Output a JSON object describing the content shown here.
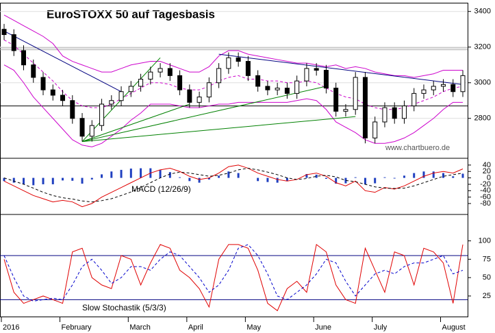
{
  "chart_data": [
    {
      "type": "candlestick",
      "title": "EuroSTOXX 50 auf Tagesbasis",
      "watermark": "www.chartbuero.de",
      "open": [
        3300,
        3270,
        3180,
        3100,
        3030,
        2960,
        2930,
        2900,
        2800,
        2700,
        2760,
        2880,
        2900,
        2950,
        2980,
        3020,
        3060,
        3080,
        3040,
        2960,
        2890,
        2920,
        3000,
        3080,
        3140,
        3120,
        3040,
        2980,
        2960,
        2970,
        2940,
        3010,
        3080,
        3070,
        2970,
        2840,
        2850,
        3030,
        2690,
        2780,
        2860,
        2800,
        2870,
        2940,
        2960,
        2980,
        2990,
        2950
      ],
      "high": [
        3330,
        3300,
        3210,
        3130,
        3060,
        2990,
        2960,
        2930,
        2830,
        2790,
        2910,
        2930,
        2980,
        3010,
        3050,
        3090,
        3110,
        3110,
        3070,
        2990,
        2950,
        3030,
        3110,
        3170,
        3170,
        3150,
        3070,
        3010,
        3000,
        3000,
        3040,
        3110,
        3110,
        3100,
        3000,
        2880,
        3060,
        3060,
        2810,
        2890,
        2890,
        2900,
        2970,
        2990,
        3010,
        3020,
        3020,
        3070
      ],
      "low": [
        3240,
        3150,
        3070,
        3000,
        2930,
        2900,
        2870,
        2770,
        2670,
        2670,
        2730,
        2850,
        2870,
        2920,
        2950,
        2990,
        3030,
        3010,
        2930,
        2860,
        2860,
        2890,
        2970,
        3050,
        3090,
        3010,
        2950,
        2930,
        2930,
        2910,
        2910,
        2980,
        3040,
        2940,
        2810,
        2810,
        2820,
        2660,
        2660,
        2750,
        2770,
        2770,
        2840,
        2910,
        2930,
        2950,
        2920,
        2920
      ],
      "close": [
        3270,
        3180,
        3100,
        3030,
        2960,
        2930,
        2900,
        2800,
        2700,
        2760,
        2880,
        2900,
        2950,
        2980,
        3020,
        3060,
        3080,
        3040,
        2960,
        2890,
        2920,
        3000,
        3080,
        3140,
        3120,
        3040,
        2980,
        2960,
        2970,
        2940,
        3010,
        3080,
        3070,
        2970,
        2840,
        2850,
        3030,
        2690,
        2780,
        2860,
        2800,
        2870,
        2940,
        2960,
        2980,
        2990,
        2950,
        3040
      ],
      "bands": {
        "color": "#cc00cc",
        "upper": [
          3380,
          3350,
          3320,
          3290,
          3260,
          3220,
          3150,
          3120,
          3100,
          3080,
          3060,
          3060,
          3080,
          3100,
          3110,
          3120,
          3120,
          3100,
          3080,
          3060,
          3060,
          3090,
          3150,
          3180,
          3180,
          3160,
          3150,
          3140,
          3130,
          3120,
          3110,
          3110,
          3100,
          3090,
          3100,
          3080,
          3090,
          3080,
          3060,
          3050,
          3040,
          3040,
          3030,
          3040,
          3050,
          3070,
          3070,
          3070
        ],
        "middle": [
          3240,
          3210,
          3160,
          3110,
          3060,
          3010,
          2950,
          2900,
          2870,
          2860,
          2860,
          2880,
          2910,
          2940,
          2970,
          3000,
          3000,
          2990,
          2970,
          2960,
          2960,
          2980,
          3010,
          3030,
          3040,
          3020,
          3020,
          3010,
          3010,
          3000,
          3000,
          3010,
          3000,
          2970,
          2940,
          2920,
          2910,
          2880,
          2860,
          2850,
          2850,
          2860,
          2880,
          2900,
          2920,
          2950,
          2970,
          2980
        ],
        "lower": [
          3100,
          3070,
          3000,
          2920,
          2860,
          2800,
          2740,
          2680,
          2650,
          2640,
          2660,
          2700,
          2740,
          2790,
          2830,
          2880,
          2880,
          2880,
          2870,
          2860,
          2860,
          2870,
          2880,
          2880,
          2890,
          2890,
          2890,
          2890,
          2890,
          2890,
          2900,
          2910,
          2900,
          2850,
          2780,
          2750,
          2720,
          2680,
          2660,
          2660,
          2670,
          2690,
          2720,
          2760,
          2800,
          2850,
          2890,
          2890
        ]
      },
      "trendlines": [
        {
          "color": "#000080",
          "x": [
            0,
            12
          ],
          "y": [
            3290,
            2950
          ]
        },
        {
          "color": "#000080",
          "x": [
            22,
            47
          ],
          "y": [
            3160,
            2990
          ]
        },
        {
          "color": "#008000",
          "x": [
            8,
            16
          ],
          "y": [
            2670,
            3140
          ]
        },
        {
          "color": "#008000",
          "x": [
            8,
            33
          ],
          "y": [
            2670,
            2980
          ]
        },
        {
          "color": "#008000",
          "x": [
            8,
            36
          ],
          "y": [
            2670,
            2810
          ]
        },
        {
          "color": "#008000",
          "x": [
            8,
            19
          ],
          "y": [
            2670,
            2880
          ]
        }
      ],
      "hlines": [
        {
          "value": 2870,
          "color": "#000000"
        },
        {
          "value": 3185,
          "color": "#aaaaaa"
        },
        {
          "value": 3195,
          "color": "#aaaaaa"
        }
      ],
      "ylim": [
        2580,
        3445
      ],
      "yticks": [
        2800,
        3000,
        3200,
        3400
      ],
      "grid": true
    },
    {
      "type": "macd",
      "label": "MACD (12/26/9)",
      "series": [
        {
          "color": "#e00000",
          "style": "solid",
          "values": [
            -10,
            -25,
            -40,
            -55,
            -65,
            -75,
            -70,
            -75,
            -90,
            -80,
            -60,
            -45,
            -30,
            -15,
            0,
            15,
            25,
            30,
            20,
            5,
            -5,
            0,
            15,
            35,
            40,
            30,
            15,
            5,
            -5,
            -10,
            -5,
            10,
            15,
            5,
            -15,
            -25,
            -10,
            -40,
            -45,
            -30,
            -35,
            -25,
            -10,
            5,
            15,
            20,
            15,
            28
          ]
        },
        {
          "color": "#000000",
          "style": "dashed",
          "values": [
            0,
            -10,
            -20,
            -32,
            -45,
            -55,
            -62,
            -66,
            -72,
            -75,
            -71,
            -65,
            -55,
            -44,
            -30,
            -15,
            0,
            12,
            18,
            15,
            10,
            5,
            8,
            15,
            25,
            30,
            25,
            18,
            10,
            0,
            -5,
            -2,
            5,
            8,
            3,
            -8,
            -12,
            -20,
            -28,
            -32,
            -33,
            -32,
            -25,
            -15,
            -5,
            5,
            10,
            15
          ]
        }
      ],
      "histogram": {
        "color": "#2040c0",
        "values": [
          -10,
          -15,
          -20,
          -23,
          -20,
          -20,
          -8,
          -9,
          -18,
          -5,
          11,
          20,
          25,
          29,
          30,
          30,
          25,
          18,
          2,
          -10,
          -15,
          -5,
          7,
          20,
          15,
          0,
          -10,
          -13,
          -15,
          -10,
          0,
          12,
          10,
          -3,
          -18,
          -17,
          2,
          -20,
          -17,
          2,
          -2,
          7,
          15,
          20,
          20,
          15,
          5,
          13
        ]
      },
      "ylim": [
        -112,
        59
      ],
      "yticks": [
        40,
        20,
        0,
        -20,
        -40,
        -60,
        -80
      ]
    },
    {
      "type": "stochastic",
      "label": "Slow Stochastik (5/3/3)",
      "series": [
        {
          "color": "#e00000",
          "style": "solid",
          "values": [
            75,
            30,
            15,
            20,
            25,
            20,
            15,
            85,
            90,
            50,
            40,
            35,
            80,
            75,
            40,
            70,
            95,
            90,
            60,
            50,
            35,
            10,
            75,
            95,
            95,
            90,
            60,
            15,
            5,
            35,
            45,
            30,
            95,
            85,
            40,
            20,
            15,
            90,
            60,
            30,
            85,
            80,
            40,
            90,
            85,
            70,
            15,
            95
          ]
        },
        {
          "color": "#0000cc",
          "style": "dashed",
          "values": [
            80,
            50,
            25,
            18,
            20,
            22,
            20,
            40,
            65,
            75,
            60,
            42,
            50,
            65,
            65,
            60,
            75,
            85,
            80,
            65,
            50,
            30,
            40,
            60,
            90,
            95,
            80,
            55,
            25,
            20,
            30,
            40,
            55,
            75,
            70,
            45,
            25,
            40,
            55,
            60,
            55,
            65,
            70,
            70,
            75,
            80,
            55,
            60
          ]
        }
      ],
      "levels": [
        80,
        20
      ],
      "level_color": "#000080",
      "ylim": [
        -3,
        135
      ],
      "yticks": [
        25,
        50,
        75,
        100
      ],
      "categories": [
        "2016",
        null,
        null,
        null,
        null,
        null,
        "February",
        null,
        null,
        null,
        null,
        null,
        null,
        "March",
        null,
        null,
        null,
        null,
        null,
        "April",
        null,
        null,
        null,
        null,
        null,
        "May",
        null,
        null,
        null,
        null,
        null,
        null,
        "June",
        null,
        null,
        null,
        null,
        null,
        "July",
        null,
        null,
        null,
        null,
        null,
        null,
        "August",
        null,
        null
      ]
    }
  ]
}
